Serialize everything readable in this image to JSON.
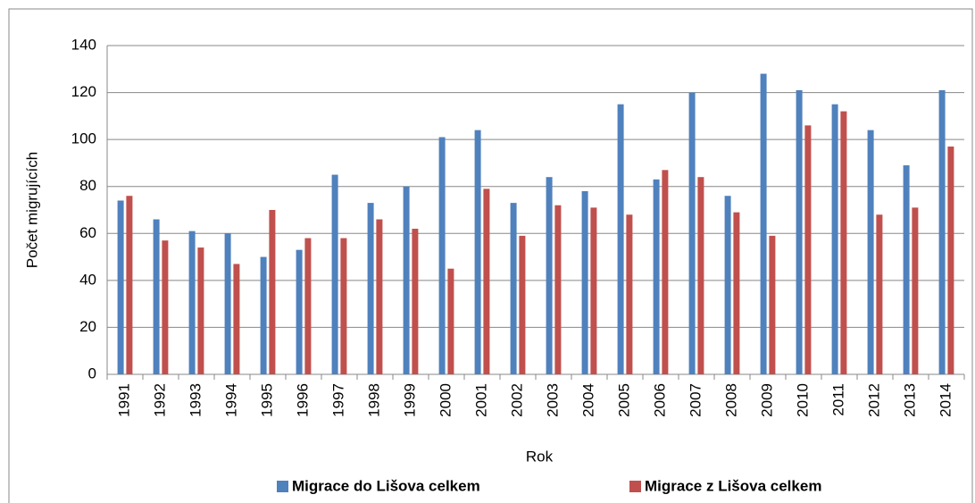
{
  "chart_data": {
    "type": "bar",
    "x_label": "Rok",
    "y_label": "Počet migrujících",
    "categories": [
      "1991",
      "1992",
      "1993",
      "1994",
      "1995",
      "1996",
      "1997",
      "1998",
      "1999",
      "2000",
      "2001",
      "2002",
      "2003",
      "2004",
      "2005",
      "2006",
      "2007",
      "2008",
      "2009",
      "2010",
      "2011",
      "2012",
      "2013",
      "2014"
    ],
    "series": [
      {
        "name": "Migrace do Lišova celkem",
        "color": "#4f81bd",
        "values": [
          74,
          66,
          61,
          60,
          50,
          53,
          85,
          73,
          80,
          101,
          104,
          73,
          84,
          78,
          115,
          83,
          120,
          76,
          128,
          121,
          115,
          104,
          89,
          121
        ]
      },
      {
        "name": "Migrace z Lišova celkem",
        "color": "#c0504d",
        "values": [
          76,
          57,
          54,
          47,
          70,
          58,
          58,
          66,
          62,
          45,
          79,
          59,
          72,
          71,
          68,
          87,
          84,
          69,
          59,
          106,
          112,
          68,
          71,
          97
        ]
      }
    ],
    "ylim": [
      0,
      140
    ],
    "yticks": [
      0,
      20,
      40,
      60,
      80,
      100,
      120,
      140
    ],
    "grid": true,
    "legend": "bottom"
  }
}
